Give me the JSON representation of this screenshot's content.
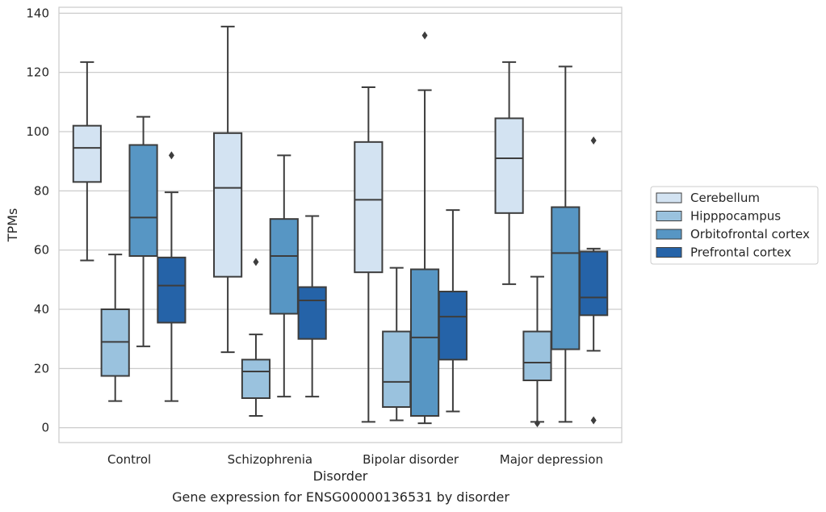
{
  "caption": "Gene expression for ENSG00000136531 by disorder",
  "chart_data": {
    "type": "box",
    "xlabel": "Disorder",
    "ylabel": "TPMs",
    "ylim": [
      -5,
      142
    ],
    "yticks": [
      0,
      20,
      40,
      60,
      80,
      100,
      120,
      140
    ],
    "grid": true,
    "legend_position": "right",
    "categories": [
      "Control",
      "Schizophrenia",
      "Bipolar disorder",
      "Major depression"
    ],
    "series": [
      {
        "name": "Cerebellum",
        "color": "#d3e3f2",
        "boxes": [
          {
            "whislo": 56.5,
            "q1": 83,
            "med": 94.5,
            "q3": 102,
            "whishi": 123.5,
            "fliers": []
          },
          {
            "whislo": 25.5,
            "q1": 51,
            "med": 81,
            "q3": 99.5,
            "whishi": 135.5,
            "fliers": []
          },
          {
            "whislo": 2,
            "q1": 52.5,
            "med": 77,
            "q3": 96.5,
            "whishi": 115,
            "fliers": []
          },
          {
            "whislo": 48.5,
            "q1": 72.5,
            "med": 91,
            "q3": 104.5,
            "whishi": 123.5,
            "fliers": []
          }
        ]
      },
      {
        "name": "Hipppocampus",
        "color": "#9ac2de",
        "boxes": [
          {
            "whislo": 9,
            "q1": 17.5,
            "med": 29,
            "q3": 40,
            "whishi": 58.5,
            "fliers": []
          },
          {
            "whislo": 4,
            "q1": 10,
            "med": 19,
            "q3": 23,
            "whishi": 31.5,
            "fliers": [
              56
            ]
          },
          {
            "whislo": 2.5,
            "q1": 7,
            "med": 15.5,
            "q3": 32.5,
            "whishi": 54,
            "fliers": []
          },
          {
            "whislo": 2,
            "q1": 16,
            "med": 22,
            "q3": 32.5,
            "whishi": 51,
            "fliers": [
              1.5
            ]
          }
        ]
      },
      {
        "name": "Orbitofrontal cortex",
        "color": "#5796c4",
        "boxes": [
          {
            "whislo": 27.5,
            "q1": 58,
            "med": 71,
            "q3": 95.5,
            "whishi": 105,
            "fliers": []
          },
          {
            "whislo": 10.5,
            "q1": 38.5,
            "med": 58,
            "q3": 70.5,
            "whishi": 92,
            "fliers": []
          },
          {
            "whislo": 1.5,
            "q1": 4,
            "med": 30.5,
            "q3": 53.5,
            "whishi": 114,
            "fliers": [
              132.5
            ]
          },
          {
            "whislo": 2,
            "q1": 26.5,
            "med": 59,
            "q3": 74.5,
            "whishi": 122,
            "fliers": []
          }
        ]
      },
      {
        "name": "Prefrontal cortex",
        "color": "#2563a8",
        "boxes": [
          {
            "whislo": 9,
            "q1": 35.5,
            "med": 48,
            "q3": 57.5,
            "whishi": 79.5,
            "fliers": [
              92
            ]
          },
          {
            "whislo": 10.5,
            "q1": 30,
            "med": 43,
            "q3": 47.5,
            "whishi": 71.5,
            "fliers": []
          },
          {
            "whislo": 5.5,
            "q1": 23,
            "med": 37.5,
            "q3": 46,
            "whishi": 73.5,
            "fliers": []
          },
          {
            "whislo": 26,
            "q1": 38,
            "med": 44,
            "q3": 59.5,
            "whishi": 60.5,
            "fliers": [
              97,
              2.5
            ]
          }
        ]
      }
    ]
  }
}
